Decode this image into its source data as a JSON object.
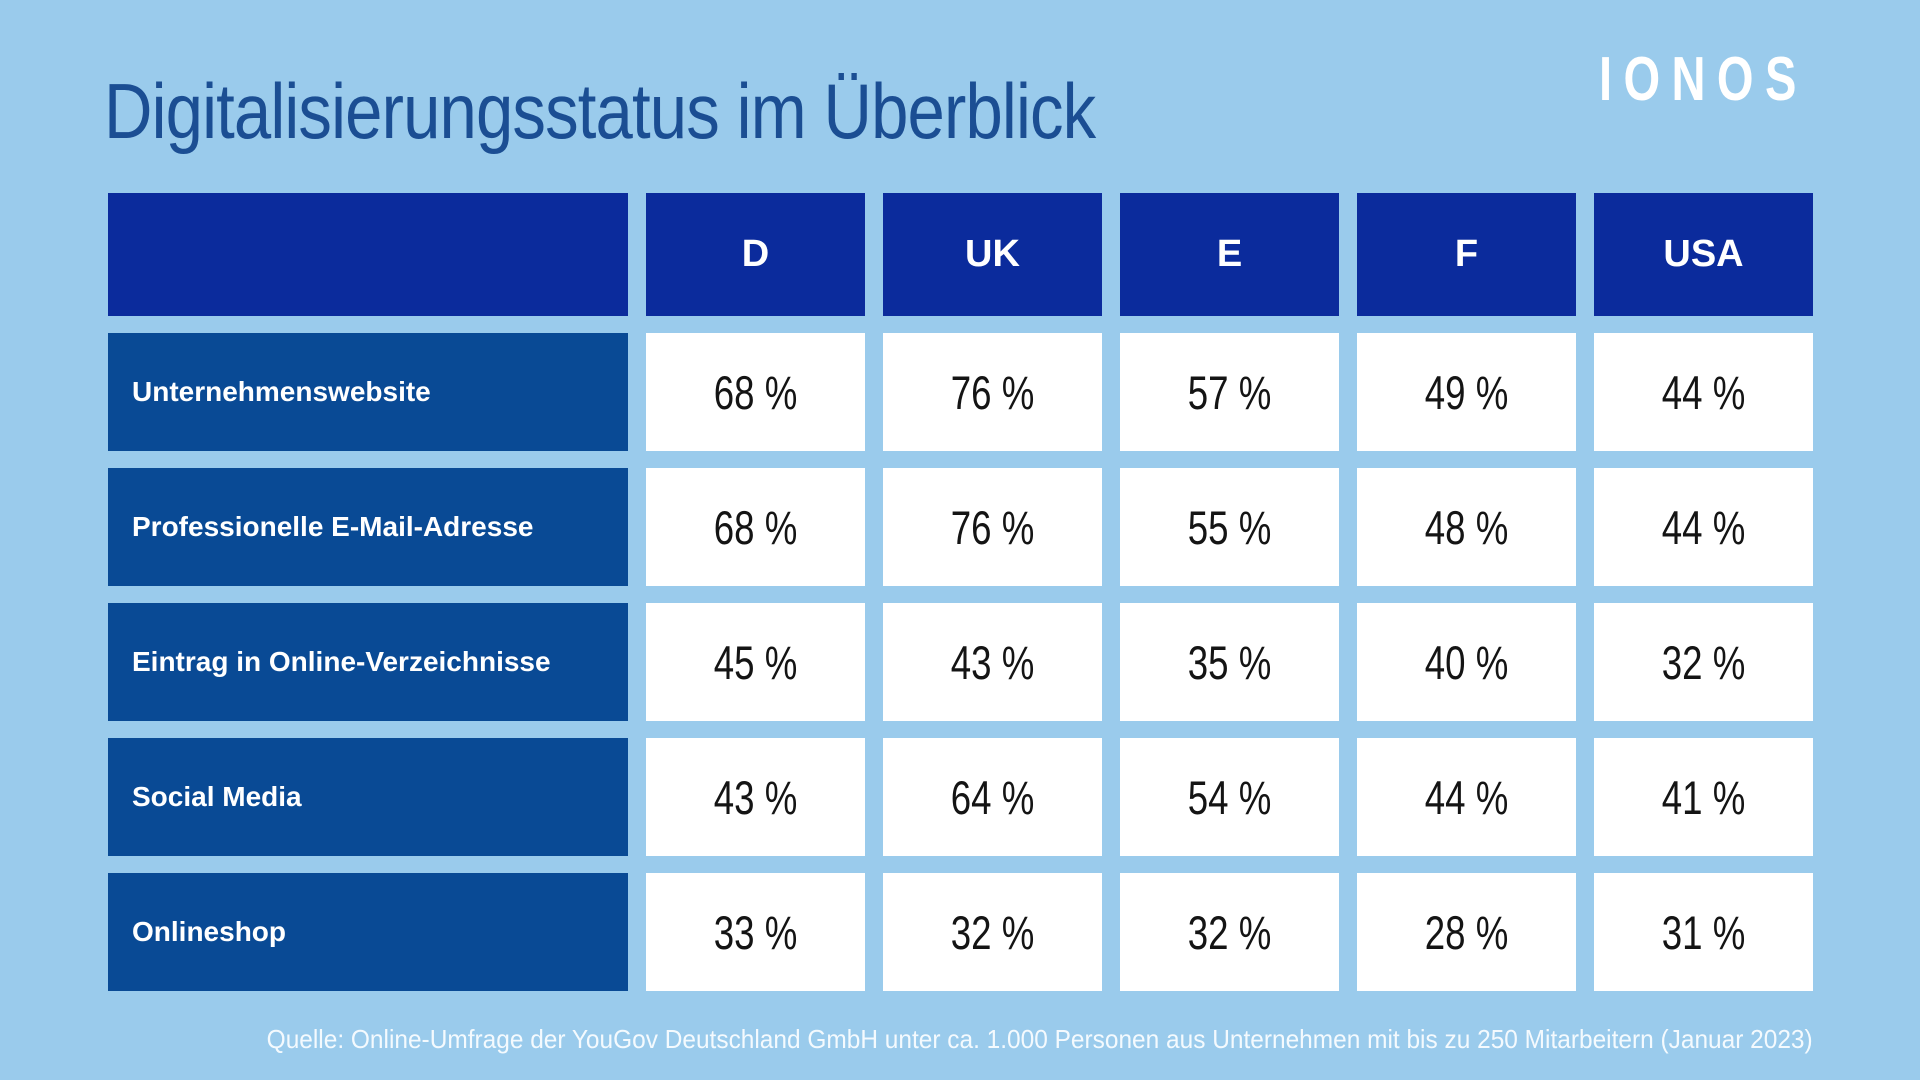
{
  "page": {
    "title": "Digitalisierungsstatus im Überblick",
    "logo_text": "IONOS",
    "source_note": "Quelle: Online-Umfrage der YouGov Deutschland GmbH unter ca. 1.000 Personen aus Unternehmen mit bis zu 250 Mitarbeitern (Januar 2023)"
  },
  "colors": {
    "page_background": "#9acbec",
    "header_cell_blue": "#0b2b9c",
    "row_label_blue": "#094a95",
    "value_cell_white": "#ffffff",
    "title_blue": "#1b4e93",
    "value_text": "#141414",
    "header_text": "#ffffff"
  },
  "chart_data": {
    "type": "table",
    "title": "Digitalisierungsstatus im Überblick",
    "columns": [
      "D",
      "UK",
      "E",
      "F",
      "USA"
    ],
    "rows": [
      {
        "label": "Unternehmenswebsite",
        "values": [
          "68 %",
          "76 %",
          "57 %",
          "49 %",
          "44 %"
        ]
      },
      {
        "label": "Professionelle E-Mail-Adresse",
        "values": [
          "68 %",
          "76 %",
          "55 %",
          "48 %",
          "44 %"
        ]
      },
      {
        "label": "Eintrag in Online-Verzeichnisse",
        "values": [
          "45 %",
          "43 %",
          "35 %",
          "40 %",
          "32 %"
        ]
      },
      {
        "label": "Social Media",
        "values": [
          "43 %",
          "64 %",
          "54 %",
          "44 %",
          "41 %"
        ]
      },
      {
        "label": "Onlineshop",
        "values": [
          "33 %",
          "32 %",
          "32 %",
          "28 %",
          "31 %"
        ]
      }
    ],
    "legend_position": "none",
    "grid": false
  }
}
